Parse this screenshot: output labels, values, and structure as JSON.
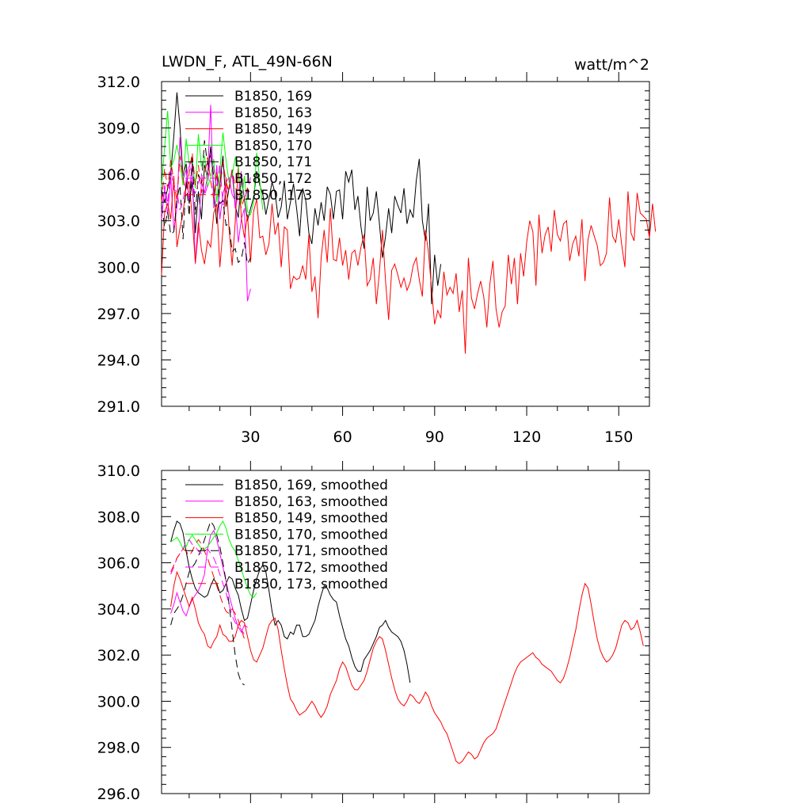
{
  "figure": {
    "title_left": "LWDN_F, ATL_49N-66N",
    "title_right": "watt/m^2"
  },
  "colors": {
    "169": "#000000",
    "163": "#ff00ff",
    "149": "#ff0000",
    "170": "#00ff00",
    "171": "#000000",
    "172": "#ff00ff",
    "173": "#ff0000"
  },
  "chart_data": [
    {
      "type": "line",
      "title": "LWDN_F, ATL_49N-66N",
      "units": "watt/m^2",
      "xlim": [
        1,
        160
      ],
      "ylim": [
        291.0,
        312.0
      ],
      "xticks": [
        30,
        60,
        90,
        120,
        150
      ],
      "yticks": [
        291.0,
        294.0,
        297.0,
        300.0,
        303.0,
        306.0,
        309.0,
        312.0
      ],
      "ytick_labels": [
        "291.0",
        "294.0",
        "297.0",
        "300.0",
        "303.0",
        "306.0",
        "309.0",
        "312.0"
      ],
      "legend": [
        "B1850, 169",
        "B1850, 163",
        "B1850, 149",
        "B1850, 170",
        "B1850, 171",
        "B1850, 172",
        "B1850, 173"
      ],
      "series": [
        {
          "name": "B1850, 169",
          "id": "169",
          "dash": "solid",
          "x_start": 1,
          "values": [
            305.0,
            304.2,
            305.1,
            306.0,
            308.5,
            311.3,
            309.1,
            305.9,
            306.7,
            304.1,
            305.5,
            302.2,
            304.9,
            303.1,
            306.6,
            305.9,
            307.8,
            305.1,
            302.8,
            305.3,
            307.2,
            303.9,
            305.1,
            306.3,
            304.0,
            303.2,
            305.8,
            304.4,
            303.0,
            303.8,
            304.5,
            306.2,
            305.3,
            304.7,
            303.4,
            304.4,
            305.5,
            304.8,
            303.2,
            303.9,
            305.6,
            303.1,
            304.2,
            305.4,
            303.8,
            302.0,
            305.1,
            304.3,
            302.2,
            301.5,
            303.8,
            302.7,
            304.2,
            303.0,
            305.2,
            304.7,
            303.1,
            304.9,
            305.0,
            303.1,
            306.2,
            305.5,
            306.3,
            303.7,
            304.6,
            302.6,
            301.2,
            305.2,
            303.0,
            303.5,
            304.9,
            302.8,
            300.6,
            302.0,
            303.8,
            302.2,
            304.6,
            304.0,
            303.5,
            305.1,
            302.8,
            303.7,
            303.2,
            305.6,
            307.0,
            303.0,
            301.7,
            304.1,
            297.6,
            300.8,
            298.8,
            300.2
          ]
        },
        {
          "name": "B1850, 163",
          "id": "163",
          "dash": "solid",
          "x_start": 1,
          "values": [
            303.1,
            305.1,
            303.4,
            305.8,
            302.4,
            303.9,
            308.4,
            305.6,
            306.3,
            304.3,
            306.8,
            300.2,
            302.3,
            305.5,
            304.8,
            305.9,
            310.5,
            303.8,
            306.6,
            303.1,
            304.7,
            305.5,
            305.8,
            304.7,
            304.3,
            301.6,
            303.1,
            303.8,
            297.8,
            298.6
          ]
        },
        {
          "name": "B1850, 149",
          "id": "149",
          "dash": "solid",
          "x_start": 1,
          "values": [
            299.5,
            303.6,
            304.1,
            303.1,
            305.9,
            301.3,
            302.5,
            303.5,
            305.2,
            305.5,
            303.2,
            300.3,
            302.9,
            301.1,
            300.2,
            301.7,
            301.3,
            303.5,
            304.1,
            300.0,
            302.4,
            305.8,
            302.5,
            300.1,
            302.9,
            306.6,
            303.2,
            301.9,
            303.4,
            300.3,
            303.6,
            304.4,
            301.9,
            302.0,
            300.8,
            301.5,
            304.1,
            302.1,
            302.9,
            300.0,
            302.6,
            302.4,
            298.6,
            299.4,
            299.2,
            299.3,
            300.1,
            299.2,
            302.1,
            298.4,
            299.4,
            296.7,
            300.6,
            302.4,
            300.3,
            303.8,
            300.5,
            300.4,
            301.9,
            300.1,
            301.1,
            299.2,
            300.9,
            301.1,
            300.1,
            301.3,
            302.1,
            298.8,
            299.2,
            300.6,
            297.6,
            299.7,
            302.4,
            299.1,
            296.6,
            299.8,
            300.2,
            299.5,
            298.7,
            299.3,
            298.5,
            299.0,
            300.1,
            300.6,
            299.2,
            298.1,
            302.4,
            300.9,
            298.6,
            296.3,
            297.2,
            296.7,
            299.7,
            298.2,
            298.7,
            298.3,
            299.6,
            297.1,
            298.5,
            294.4,
            300.6,
            298.0,
            297.3,
            298.3,
            299.1,
            298.1,
            296.1,
            298.9,
            300.4,
            297.3,
            296.1,
            297.1,
            297.5,
            300.8,
            298.9,
            300.6,
            297.6,
            300.9,
            299.4,
            301.6,
            303.0,
            302.3,
            298.8,
            303.4,
            300.9,
            302.1,
            302.6,
            301.0,
            303.7,
            302.1,
            301.7,
            302.8,
            303.0,
            300.4,
            301.5,
            302.0,
            300.7,
            303.1,
            299.1,
            301.8,
            302.7,
            302.0,
            301.4,
            300.1,
            300.3,
            300.9,
            304.5,
            302.0,
            301.6,
            303.1,
            301.4,
            300.0,
            304.9,
            302.2,
            301.7,
            304.8,
            303.5,
            303.3,
            303.1,
            301.9,
            304.1,
            302.3
          ]
        },
        {
          "name": "B1850, 170",
          "id": "170",
          "dash": "solid",
          "x_start": 1,
          "values": [
            305.2,
            307.8,
            310.1,
            306.4,
            306.9,
            307.9,
            306.8,
            305.3,
            308.3,
            306.7,
            307.0,
            305.1,
            308.6,
            306.5,
            307.2,
            305.2,
            305.8,
            307.0,
            304.2,
            306.2,
            308.7,
            306.9,
            305.5,
            305.9,
            307.1,
            306.5,
            304.1,
            305.9,
            303.6,
            303.4,
            304.2,
            307.4,
            305.6,
            303.7
          ]
        },
        {
          "name": "B1850, 171",
          "id": "171",
          "dash": "dash",
          "x_start": 1,
          "values": [
            304.0,
            302.6,
            303.6,
            302.1,
            302.3,
            304.4,
            305.3,
            301.8,
            305.7,
            303.3,
            307.1,
            303.4,
            306.0,
            305.4,
            308.2,
            306.6,
            307.2,
            305.9,
            305.9,
            304.1,
            304.3,
            302.7,
            302.8,
            301.0,
            301.2,
            300.3,
            300.5,
            301.6,
            300.2,
            300.6
          ]
        },
        {
          "name": "B1850, 172",
          "id": "172",
          "dash": "dash",
          "x_start": 1,
          "values": [
            303.4,
            305.3,
            304.1,
            306.4,
            305.0,
            304.9,
            303.7,
            304.3,
            305.6,
            306.8,
            305.2,
            304.8,
            305.5,
            306.0,
            304.6,
            305.3,
            307.3,
            306.4,
            305.1,
            306.7,
            304.0,
            304.9,
            305.4,
            306.1,
            303.8,
            304.7,
            306.2,
            304.4,
            305.0,
            305.8
          ]
        },
        {
          "name": "B1850, 173",
          "id": "173",
          "dash": "dash",
          "x_start": 1,
          "values": [
            304.2,
            306.4,
            305.1,
            306.9,
            305.5,
            304.3,
            307.2,
            305.8,
            304.6,
            306.1,
            307.4,
            305.3,
            306.6,
            304.8,
            305.9,
            307.1,
            305.6,
            304.4,
            306.2,
            305.0,
            306.8,
            305.5,
            304.9,
            306.3,
            305.2,
            304.6,
            303.8,
            304.5,
            305.1,
            304.7
          ]
        }
      ]
    },
    {
      "type": "line",
      "xlim": [
        1,
        160
      ],
      "ylim": [
        296.0,
        310.0
      ],
      "xticks": [
        30,
        60,
        90,
        120,
        150
      ],
      "yticks": [
        296.0,
        298.0,
        300.0,
        302.0,
        304.0,
        306.0,
        308.0,
        310.0
      ],
      "ytick_labels": [
        "296.0",
        "298.0",
        "300.0",
        "302.0",
        "304.0",
        "306.0",
        "308.0",
        "310.0"
      ],
      "legend": [
        "B1850, 169, smoothed",
        "B1850, 163, smoothed",
        "B1850, 149, smoothed",
        "B1850, 170, smoothed",
        "B1850, 171, smoothed",
        "B1850, 172, smoothed",
        "B1850, 173, smoothed"
      ],
      "series": [
        {
          "name": "B1850, 169, smoothed",
          "id": "169",
          "dash": "solid",
          "x_start": 4,
          "values": [
            306.9,
            307.4,
            307.8,
            307.7,
            307.3,
            306.5,
            305.8,
            305.3,
            304.9,
            304.7,
            304.6,
            304.5,
            304.6,
            305.0,
            305.3,
            305.1,
            304.7,
            304.8,
            305.1,
            305.4,
            305.3,
            304.9,
            304.6,
            304.0,
            303.5,
            303.6,
            304.2,
            304.8,
            305.3,
            305.7,
            305.9,
            305.6,
            304.8,
            303.9,
            303.3,
            303.5,
            303.3,
            302.8,
            302.7,
            303.0,
            302.9,
            303.3,
            303.3,
            302.8,
            302.8,
            302.9,
            303.2,
            303.5,
            304.1,
            304.6,
            305.0,
            304.9,
            304.6,
            304.4,
            304.3,
            303.7,
            303.2,
            302.7,
            302.4,
            301.9,
            301.5,
            301.3,
            301.3,
            301.8,
            302.0,
            302.2,
            302.5,
            302.8,
            303.2,
            303.3,
            303.5,
            303.2,
            303.0,
            302.9,
            302.8,
            302.6,
            302.2,
            301.6,
            300.8
          ]
        },
        {
          "name": "B1850, 163, smoothed",
          "id": "163",
          "dash": "solid",
          "x_start": 4,
          "values": [
            303.8,
            304.2,
            304.7,
            304.3,
            303.9,
            303.7,
            304.1,
            304.4,
            304.6,
            304.8,
            305.1,
            305.5,
            306.6,
            307.2,
            307.4,
            307.0,
            306.4,
            305.8,
            305.2,
            304.6,
            304.1,
            303.6,
            303.2,
            303.0,
            303.3,
            303.2
          ]
        },
        {
          "name": "B1850, 149, smoothed",
          "id": "149",
          "dash": "solid",
          "x_start": 4,
          "values": [
            304.1,
            305.0,
            305.6,
            305.3,
            304.9,
            304.5,
            304.1,
            304.5,
            304.0,
            303.4,
            303.1,
            302.9,
            302.4,
            302.3,
            302.6,
            302.8,
            303.3,
            302.9,
            302.8,
            302.6,
            302.6,
            302.8,
            303.3,
            303.5,
            303.4,
            302.8,
            302.2,
            301.8,
            301.7,
            302.0,
            302.3,
            302.8,
            303.3,
            303.5,
            303.6,
            303.1,
            302.2,
            301.4,
            300.7,
            300.1,
            299.9,
            299.6,
            299.4,
            299.5,
            299.6,
            299.8,
            300.0,
            299.8,
            299.5,
            299.3,
            299.5,
            299.8,
            300.3,
            300.6,
            300.9,
            301.4,
            301.7,
            301.5,
            301.1,
            300.7,
            300.5,
            300.5,
            300.7,
            300.9,
            301.3,
            301.8,
            302.3,
            302.6,
            302.8,
            302.7,
            302.2,
            301.6,
            301.0,
            300.5,
            300.1,
            299.9,
            299.8,
            300.0,
            300.3,
            300.2,
            300.0,
            299.9,
            300.1,
            300.4,
            300.2,
            299.8,
            299.5,
            299.3,
            299.1,
            298.8,
            298.6,
            298.2,
            297.8,
            297.4,
            297.3,
            297.4,
            297.6,
            297.8,
            297.7,
            297.5,
            297.6,
            297.9,
            298.2,
            298.4,
            298.5,
            298.6,
            298.8,
            299.2,
            299.6,
            300.0,
            300.4,
            300.8,
            301.2,
            301.5,
            301.7,
            301.8,
            301.9,
            302.0,
            302.1,
            301.9,
            301.8,
            301.6,
            301.5,
            301.4,
            301.3,
            301.1,
            300.9,
            300.8,
            301.0,
            301.4,
            301.9,
            302.5,
            303.1,
            303.9,
            304.6,
            305.1,
            304.9,
            304.2,
            303.4,
            302.7,
            302.2,
            301.9,
            301.7,
            301.8,
            302.0,
            302.3,
            302.8,
            303.3,
            303.5,
            303.4,
            303.1,
            303.2,
            303.5,
            303.0,
            302.4
          ]
        },
        {
          "name": "B1850, 170, smoothed",
          "id": "170",
          "dash": "solid",
          "x_start": 4,
          "values": [
            306.9,
            307.0,
            307.1,
            306.9,
            306.6,
            306.7,
            307.0,
            307.2,
            307.0,
            306.8,
            306.6,
            306.6,
            306.7,
            306.9,
            307.1,
            307.3,
            307.6,
            307.8,
            307.5,
            307.0,
            306.7,
            306.5,
            306.1,
            305.7,
            305.3,
            304.9,
            304.6,
            304.5,
            304.7
          ]
        },
        {
          "name": "B1850, 171, smoothed",
          "id": "171",
          "dash": "dash",
          "x_start": 4,
          "values": [
            303.3,
            303.8,
            304.0,
            304.2,
            304.6,
            305.1,
            305.6,
            305.8,
            306.0,
            306.3,
            306.6,
            307.0,
            307.4,
            307.8,
            307.6,
            307.2,
            306.7,
            306.0,
            305.2,
            304.2,
            303.1,
            302.0,
            301.2,
            300.8,
            300.7
          ]
        },
        {
          "name": "B1850, 172, smoothed",
          "id": "172",
          "dash": "dash",
          "x_start": 4,
          "values": [
            305.5,
            305.8,
            306.2,
            306.4,
            306.6,
            306.9,
            307.0,
            306.8,
            306.7,
            306.5,
            306.4,
            306.5,
            306.6,
            306.4,
            306.2,
            305.9,
            305.5,
            305.1,
            304.7,
            304.2,
            303.7,
            303.4,
            303.3,
            303.1,
            302.9
          ]
        },
        {
          "name": "B1850, 173, smoothed",
          "id": "173",
          "dash": "dash",
          "x_start": 4,
          "values": [
            305.6,
            305.9,
            306.2,
            306.4,
            306.6,
            306.5,
            306.3,
            306.5,
            306.8,
            307.0,
            306.8,
            306.5,
            306.2,
            305.8,
            305.4,
            305.0,
            304.6,
            304.2,
            303.9,
            303.8,
            304.0,
            303.8,
            303.5,
            303.1,
            302.7
          ]
        }
      ]
    }
  ]
}
